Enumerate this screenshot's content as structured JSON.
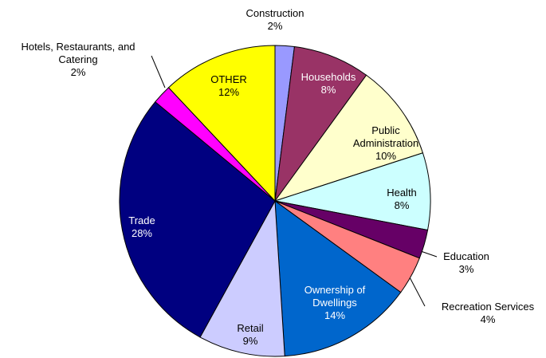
{
  "chart_data": {
    "type": "pie",
    "categories": [
      "Construction",
      "Households",
      "Public Administration",
      "Health",
      "Education",
      "Recreation Services",
      "Ownership of Dwellings",
      "Retail",
      "Trade",
      "Hotels, Restaurants, and Catering",
      "OTHER"
    ],
    "values": [
      2,
      8,
      10,
      8,
      3,
      4,
      14,
      9,
      28,
      2,
      12
    ],
    "value_labels": [
      "2%",
      "8%",
      "10%",
      "8%",
      "3%",
      "4%",
      "14%",
      "9%",
      "28%",
      "2%",
      "12%"
    ],
    "colors": [
      "#9999ff",
      "#993366",
      "#ffffcc",
      "#ccffff",
      "#660066",
      "#ff8080",
      "#0066cc",
      "#ccccff",
      "#000080",
      "#ff00ff",
      "#ffff00"
    ]
  }
}
